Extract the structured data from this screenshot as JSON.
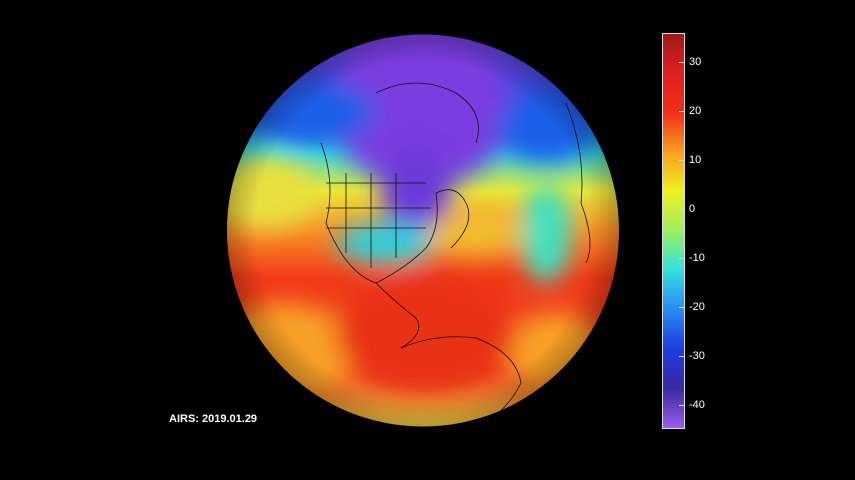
{
  "caption": "AIRS: 2019.01.29",
  "colorbar": {
    "min": -45,
    "max": 36,
    "ticks": [
      30,
      20,
      10,
      0,
      -10,
      -20,
      -30,
      -40
    ],
    "tick_labels": [
      "30",
      "20",
      "10",
      "0",
      "-10",
      "-20",
      "-30",
      "-40"
    ],
    "colors": [
      "#9a5cf0",
      "#3a2aa0",
      "#1a3ce0",
      "#2a8af0",
      "#30e0e0",
      "#9af060",
      "#f0f020",
      "#f8a020",
      "#f03018",
      "#e02020",
      "#a01818"
    ]
  },
  "map": {
    "projection": "orthographic",
    "region": "North and South America"
  }
}
